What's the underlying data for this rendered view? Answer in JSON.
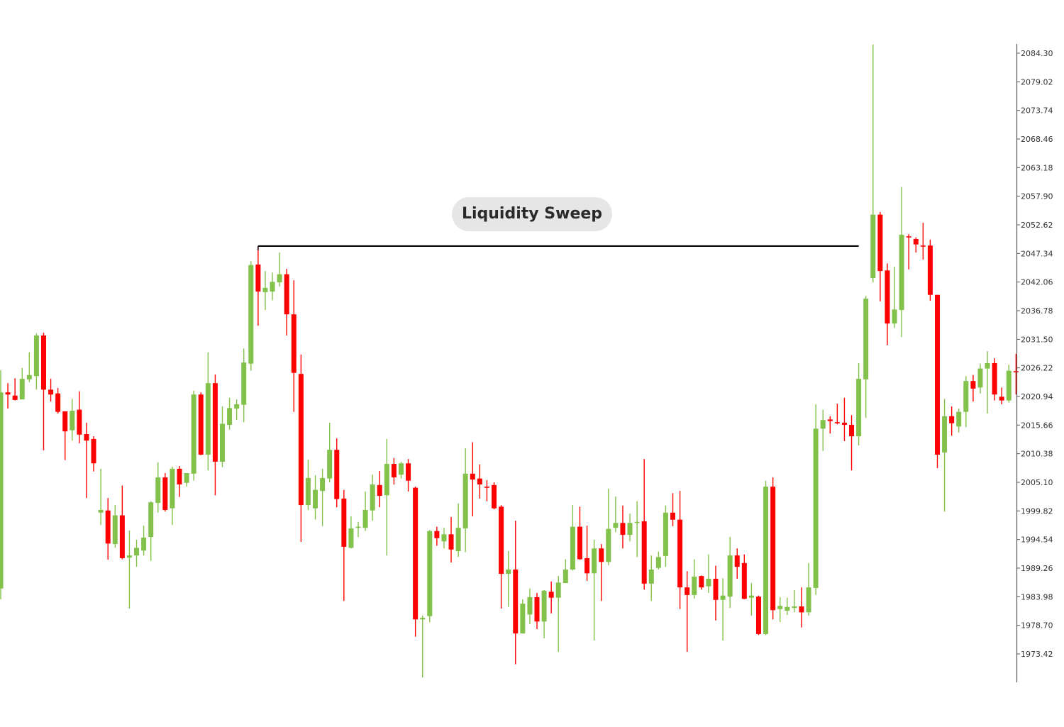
{
  "chart_data": {
    "type": "candlestick",
    "title": "",
    "xlabel": "",
    "ylabel": "",
    "grid": false,
    "y_axis_position": "right",
    "ylim": [
      1968.0,
      2086.0
    ],
    "y_ticks": [
      "2084.30",
      "2079.02",
      "2073.74",
      "2068.46",
      "2063.18",
      "2057.90",
      "2052.62",
      "2047.34",
      "2042.06",
      "2036.78",
      "2031.50",
      "2026.22",
      "2020.94",
      "2015.66",
      "2010.38",
      "2005.10",
      "1999.82",
      "1994.54",
      "1989.26",
      "1983.98",
      "1978.70",
      "1973.42"
    ],
    "colors": {
      "up": "#82c24b",
      "down": "#ff0000",
      "level_line": "#000000",
      "label_bg": "#e6e6e6"
    },
    "ohlc_fields": [
      "open",
      "high",
      "low",
      "close"
    ],
    "ohlc": [
      [
        1985.5,
        2025.8,
        1983.5,
        2021.7
      ],
      [
        2021.7,
        2023.4,
        2018.7,
        2021.3
      ],
      [
        2021.1,
        2024.3,
        2020.2,
        2020.3
      ],
      [
        2020.4,
        2026.2,
        2020.4,
        2024.2
      ],
      [
        2024.1,
        2029.1,
        2023.6,
        2024.9
      ],
      [
        2024.7,
        2032.6,
        2022.2,
        2032.2
      ],
      [
        2032.2,
        2032.7,
        2011.0,
        2022.2
      ],
      [
        2022.2,
        2024.2,
        2020.0,
        2021.3
      ],
      [
        2021.5,
        2022.5,
        2017.8,
        2018.1
      ],
      [
        2018.2,
        2018.2,
        2009.2,
        2014.5
      ],
      [
        2014.7,
        2020.5,
        2012.8,
        2018.3
      ],
      [
        2018.5,
        2021.9,
        2012.3,
        2013.9
      ],
      [
        2014.0,
        2016.1,
        2002.2,
        2012.8
      ],
      [
        2013.1,
        2013.6,
        2007.1,
        2008.6
      ],
      [
        1999.5,
        2007.6,
        1997.2,
        2000.0
      ],
      [
        1999.9,
        2002.2,
        1990.8,
        1993.8
      ],
      [
        1993.7,
        2000.9,
        1993.0,
        1999.0
      ],
      [
        1999.0,
        2004.5,
        1990.9,
        1991.1
      ],
      [
        1991.2,
        1996.2,
        1981.8,
        1991.6
      ],
      [
        1991.6,
        1994.5,
        1989.5,
        1993.0
      ],
      [
        1992.5,
        1997.1,
        1991.6,
        1994.9
      ],
      [
        1995.0,
        2001.6,
        1990.6,
        2001.4
      ],
      [
        2001.3,
        2008.8,
        1999.5,
        2006.0
      ],
      [
        2006.0,
        2006.8,
        1999.7,
        2000.0
      ],
      [
        2000.3,
        2008.0,
        1997.2,
        2007.6
      ],
      [
        2007.6,
        2008.1,
        2002.4,
        2004.7
      ],
      [
        2005.0,
        2006.8,
        2004.3,
        2006.8
      ],
      [
        2006.7,
        2022.0,
        2005.4,
        2021.3
      ],
      [
        2021.3,
        2021.7,
        2010.1,
        2010.2
      ],
      [
        2010.2,
        2029.1,
        2007.3,
        2023.4
      ],
      [
        2023.4,
        2025.0,
        2002.7,
        2008.9
      ],
      [
        2008.9,
        2019.1,
        2007.9,
        2015.9
      ],
      [
        2015.7,
        2020.7,
        2014.8,
        2018.8
      ],
      [
        2018.7,
        2020.4,
        2016.6,
        2019.5
      ],
      [
        2019.4,
        2029.8,
        2016.2,
        2027.2
      ],
      [
        2027.0,
        2045.9,
        2025.7,
        2045.2
      ],
      [
        2045.3,
        2048.7,
        2034.0,
        2040.3
      ],
      [
        2040.2,
        2044.1,
        2036.9,
        2041.0
      ],
      [
        2040.3,
        2043.8,
        2038.7,
        2042.1
      ],
      [
        2042.0,
        2047.5,
        2041.2,
        2043.5
      ],
      [
        2043.5,
        2044.5,
        2032.2,
        2036.1
      ],
      [
        2036.1,
        2042.4,
        2018.1,
        2025.3
      ],
      [
        2025.1,
        2028.7,
        1994.1,
        2000.9
      ],
      [
        2000.9,
        2009.3,
        2000.0,
        2005.9
      ],
      [
        2000.3,
        2006.4,
        1998.2,
        2003.7
      ],
      [
        2003.5,
        2007.6,
        1997.0,
        2005.9
      ],
      [
        2005.8,
        2016.1,
        2005.1,
        2011.1
      ],
      [
        2011.1,
        2013.2,
        2000.5,
        2002.0
      ],
      [
        2002.1,
        2003.7,
        1983.2,
        1993.2
      ],
      [
        1993.0,
        1998.8,
        1992.9,
        1996.6
      ],
      [
        1996.7,
        1997.8,
        1995.0,
        1996.9
      ],
      [
        1996.7,
        2003.4,
        1996.1,
        2000.0
      ],
      [
        1999.9,
        2006.5,
        1998.0,
        2004.7
      ],
      [
        2004.6,
        2007.2,
        2000.5,
        2002.6
      ],
      [
        2002.7,
        2013.1,
        1991.6,
        2008.5
      ],
      [
        2008.5,
        2009.6,
        2004.7,
        2006.0
      ],
      [
        2006.5,
        2008.9,
        2005.8,
        2008.6
      ],
      [
        2008.6,
        2009.4,
        2003.4,
        2005.4
      ],
      [
        2004.1,
        2004.3,
        1976.6,
        1979.8
      ],
      [
        1979.8,
        1980.5,
        1969.1,
        1980.1
      ],
      [
        1980.4,
        1996.3,
        1979.3,
        1996.1
      ],
      [
        1996.1,
        1996.9,
        1993.4,
        1994.8
      ],
      [
        1994.2,
        1996.7,
        1992.9,
        1995.5
      ],
      [
        1995.5,
        1998.7,
        1990.3,
        1992.7
      ],
      [
        1992.4,
        2001.2,
        1991.3,
        1996.7
      ],
      [
        1996.6,
        2011.4,
        1992.2,
        2006.7
      ],
      [
        2006.7,
        2012.5,
        1998.8,
        2005.6
      ],
      [
        2005.8,
        2008.4,
        2002.1,
        2004.7
      ],
      [
        2004.3,
        2005.5,
        2001.6,
        2004.2
      ],
      [
        2004.6,
        2005.1,
        2000.1,
        2000.3
      ],
      [
        2000.6,
        2000.9,
        1981.8,
        1988.2
      ],
      [
        1988.2,
        1992.4,
        1982.1,
        1989.0
      ],
      [
        1989.0,
        1998.0,
        1971.5,
        1977.2
      ],
      [
        1977.2,
        1983.5,
        1977.2,
        1982.7
      ],
      [
        1980.7,
        1985.5,
        1978.9,
        1983.9
      ],
      [
        1983.9,
        1984.7,
        1978.0,
        1979.4
      ],
      [
        1979.4,
        1985.2,
        1976.3,
        1985.1
      ],
      [
        1984.9,
        1986.8,
        1980.9,
        1983.8
      ],
      [
        1983.8,
        1987.8,
        1973.8,
        1986.6
      ],
      [
        1986.5,
        1990.9,
        1986.5,
        1989.0
      ],
      [
        1989.0,
        2000.9,
        1988.8,
        1996.9
      ],
      [
        1996.9,
        2000.6,
        1990.8,
        1990.9
      ],
      [
        1991.1,
        1997.1,
        1986.9,
        1988.3
      ],
      [
        1988.3,
        1994.5,
        1975.9,
        1992.9
      ],
      [
        1992.9,
        1993.7,
        1983.2,
        1990.4
      ],
      [
        1990.4,
        2003.9,
        1989.8,
        1996.5
      ],
      [
        1996.7,
        2002.5,
        1995.9,
        1997.6
      ],
      [
        1997.6,
        2000.8,
        1992.9,
        1995.4
      ],
      [
        1995.4,
        1999.3,
        1994.2,
        1997.6
      ],
      [
        1997.7,
        2001.6,
        1991.3,
        1997.8
      ],
      [
        1997.9,
        2009.4,
        1985.3,
        1986.4
      ],
      [
        1986.4,
        1991.6,
        1983.2,
        1989.0
      ],
      [
        1989.3,
        1992.3,
        1989.0,
        1991.3
      ],
      [
        1991.5,
        2000.8,
        1989.5,
        1999.5
      ],
      [
        1999.5,
        2003.1,
        1997.0,
        1998.2
      ],
      [
        1998.2,
        2003.5,
        1981.7,
        1985.7
      ],
      [
        1985.7,
        1988.7,
        1973.8,
        1984.3
      ],
      [
        1984.3,
        1990.9,
        1983.6,
        1987.7
      ],
      [
        1987.8,
        1987.9,
        1985.3,
        1985.7
      ],
      [
        1985.9,
        1991.8,
        1984.7,
        1987.3
      ],
      [
        1987.3,
        1989.7,
        1979.6,
        1983.4
      ],
      [
        1983.4,
        1987.4,
        1975.9,
        1984.2
      ],
      [
        1984.0,
        1995.0,
        1981.9,
        1991.6
      ],
      [
        1991.6,
        1992.9,
        1987.3,
        1989.5
      ],
      [
        1990.2,
        1991.8,
        1983.5,
        1983.6
      ],
      [
        1983.8,
        1986.5,
        1980.5,
        1984.2
      ],
      [
        1984.0,
        1984.2,
        1976.9,
        1977.1
      ],
      [
        1977.1,
        2005.4,
        1976.9,
        2004.3
      ],
      [
        2004.3,
        2006.0,
        1979.8,
        1981.5
      ],
      [
        1981.7,
        1983.9,
        1979.3,
        1982.3
      ],
      [
        1981.4,
        1983.8,
        1980.6,
        1982.1
      ],
      [
        1981.9,
        1985.2,
        1981.1,
        1982.2
      ],
      [
        1982.2,
        1985.7,
        1978.3,
        1981.1
      ],
      [
        1981.1,
        1990.2,
        1980.5,
        1985.7
      ],
      [
        1985.6,
        2019.5,
        1984.3,
        2015.0
      ],
      [
        2015.0,
        2018.5,
        2010.9,
        2016.6
      ],
      [
        2016.7,
        2017.3,
        2014.1,
        2016.4
      ],
      [
        2016.2,
        2019.6,
        2015.8,
        2016.0
      ],
      [
        2016.1,
        2020.7,
        2012.7,
        2015.7
      ],
      [
        2015.7,
        2017.5,
        2007.3,
        2013.6
      ],
      [
        2013.6,
        2027.1,
        2011.9,
        2024.2
      ],
      [
        2024.1,
        2039.5,
        2017.0,
        2039.0
      ],
      [
        2042.8,
        2085.9,
        2042.0,
        2054.5
      ],
      [
        2054.5,
        2055.0,
        2038.5,
        2044.1
      ],
      [
        2044.2,
        2045.5,
        2030.4,
        2034.4
      ],
      [
        2034.4,
        2044.9,
        2033.6,
        2037.0
      ],
      [
        2036.9,
        2059.6,
        2031.9,
        2050.8
      ],
      [
        2050.5,
        2050.9,
        2044.4,
        2050.3
      ],
      [
        2050.0,
        2050.3,
        2047.5,
        2049.0
      ],
      [
        2048.8,
        2053.0,
        2046.2,
        2048.6
      ],
      [
        2048.8,
        2049.9,
        2038.6,
        2039.7
      ],
      [
        2039.7,
        2039.7,
        2007.7,
        2010.2
      ],
      [
        2010.6,
        2020.5,
        1999.7,
        2017.3
      ],
      [
        2017.3,
        2019.1,
        2013.7,
        2016.0
      ],
      [
        2015.4,
        2018.7,
        2014.3,
        2018.1
      ],
      [
        2018.1,
        2024.7,
        2015.3,
        2023.8
      ],
      [
        2023.8,
        2024.9,
        2020.0,
        2022.4
      ],
      [
        2022.6,
        2027.0,
        2021.5,
        2026.1
      ],
      [
        2026.1,
        2029.3,
        2017.8,
        2027.1
      ],
      [
        2027.1,
        2028.0,
        2020.2,
        2021.3
      ],
      [
        2020.9,
        2022.6,
        2019.5,
        2020.2
      ],
      [
        2020.2,
        2026.8,
        2019.8,
        2025.7
      ],
      [
        2025.6,
        2028.8,
        2021.3,
        2025.4
      ]
    ],
    "annotations": [
      {
        "type": "horizontal-level",
        "label": "Liquidity Sweep",
        "level": 2048.7,
        "from_candle": 37,
        "to_candle": 121
      }
    ]
  }
}
